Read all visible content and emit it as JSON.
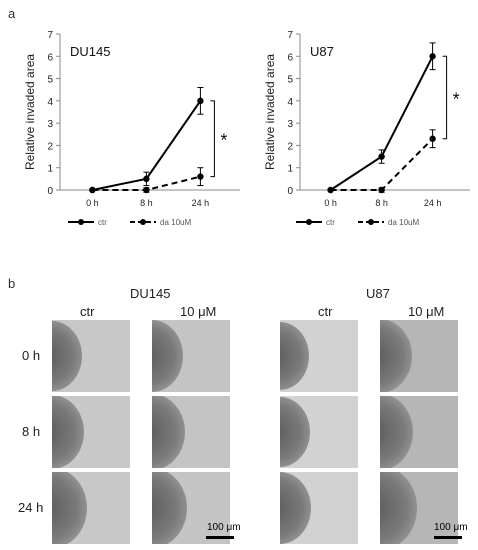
{
  "panel_a_label": "a",
  "panel_b_label": "b",
  "chart_data": [
    {
      "type": "line",
      "title": "DU145",
      "ylabel": "Relative invaded area",
      "xlabel": "",
      "categories": [
        "0 h",
        "8 h",
        "24 h"
      ],
      "ylim": [
        0,
        7
      ],
      "yticks": [
        0,
        1,
        2,
        3,
        4,
        5,
        6,
        7
      ],
      "grid": false,
      "legend_position": "bottom",
      "significance": "*",
      "series": [
        {
          "name": "ctr",
          "values": [
            0,
            0.5,
            4.0
          ],
          "errors": [
            0,
            0.3,
            0.6
          ],
          "style": "solid"
        },
        {
          "name": "da 10uM",
          "values": [
            0,
            0.0,
            0.6
          ],
          "errors": [
            0,
            0.1,
            0.4
          ],
          "style": "dashed"
        }
      ]
    },
    {
      "type": "line",
      "title": "U87",
      "ylabel": "Relative invaded area",
      "xlabel": "",
      "categories": [
        "0 h",
        "8 h",
        "24 h"
      ],
      "ylim": [
        0,
        7
      ],
      "yticks": [
        0,
        1,
        2,
        3,
        4,
        5,
        6,
        7
      ],
      "grid": false,
      "legend_position": "bottom",
      "significance": "*",
      "series": [
        {
          "name": "ctr",
          "values": [
            0,
            1.5,
            6.0
          ],
          "errors": [
            0,
            0.3,
            0.6
          ],
          "style": "solid"
        },
        {
          "name": "da 10uM",
          "values": [
            0,
            0.0,
            2.3
          ],
          "errors": [
            0,
            0.1,
            0.4
          ],
          "style": "dashed"
        }
      ]
    }
  ],
  "micrographs": {
    "groups": [
      {
        "title": "DU145",
        "columns": [
          "ctr",
          "10 μM"
        ]
      },
      {
        "title": "U87",
        "columns": [
          "ctr",
          "10 μM"
        ]
      }
    ],
    "rows": [
      "0 h",
      "8 h",
      "24 h"
    ],
    "scale_bar": "100 μm"
  },
  "colors": {
    "line": "#000000",
    "axis": "#888888",
    "tissue_dark": "#6e6e6e",
    "background": "#cdcdcd"
  }
}
